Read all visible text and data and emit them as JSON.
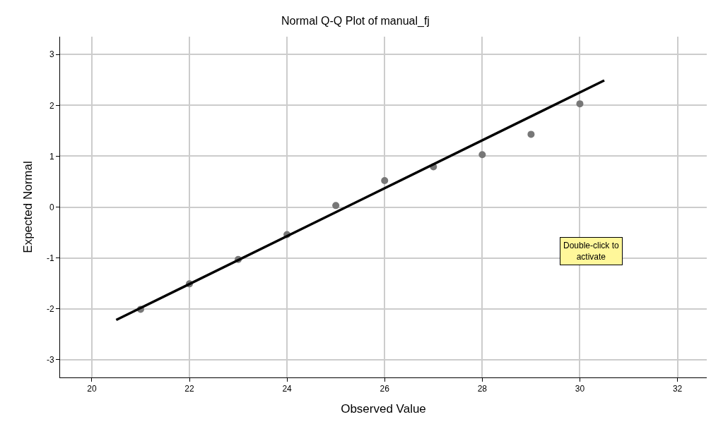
{
  "chart_data": {
    "type": "scatter",
    "title": "Normal Q-Q Plot of manual_fj",
    "xlabel": "Observed Value",
    "ylabel": "Expected Normal",
    "x": [
      21,
      22,
      23,
      24,
      25,
      26,
      27,
      28,
      29,
      30
    ],
    "series": [
      {
        "color": "#777777",
        "marker": "circle",
        "values": [
          -2.01,
          -1.51,
          -1.03,
          -0.54,
          0.03,
          0.52,
          0.79,
          1.03,
          1.43,
          2.03
        ]
      },
      {
        "type": "line",
        "color": "#000000",
        "marker": "none",
        "x": [
          20.5,
          30.5
        ],
        "values": [
          -2.22,
          2.49
        ]
      }
    ],
    "xlim": [
      19.35,
      32.6
    ],
    "ylim": [
      -3.35,
      3.35
    ],
    "xticks": [
      20,
      22,
      24,
      26,
      28,
      30,
      32
    ],
    "yticks": [
      -3,
      -2,
      -1,
      0,
      1,
      2,
      3
    ],
    "grid": true,
    "annotations": [
      "Double-click to\nactivate"
    ]
  }
}
